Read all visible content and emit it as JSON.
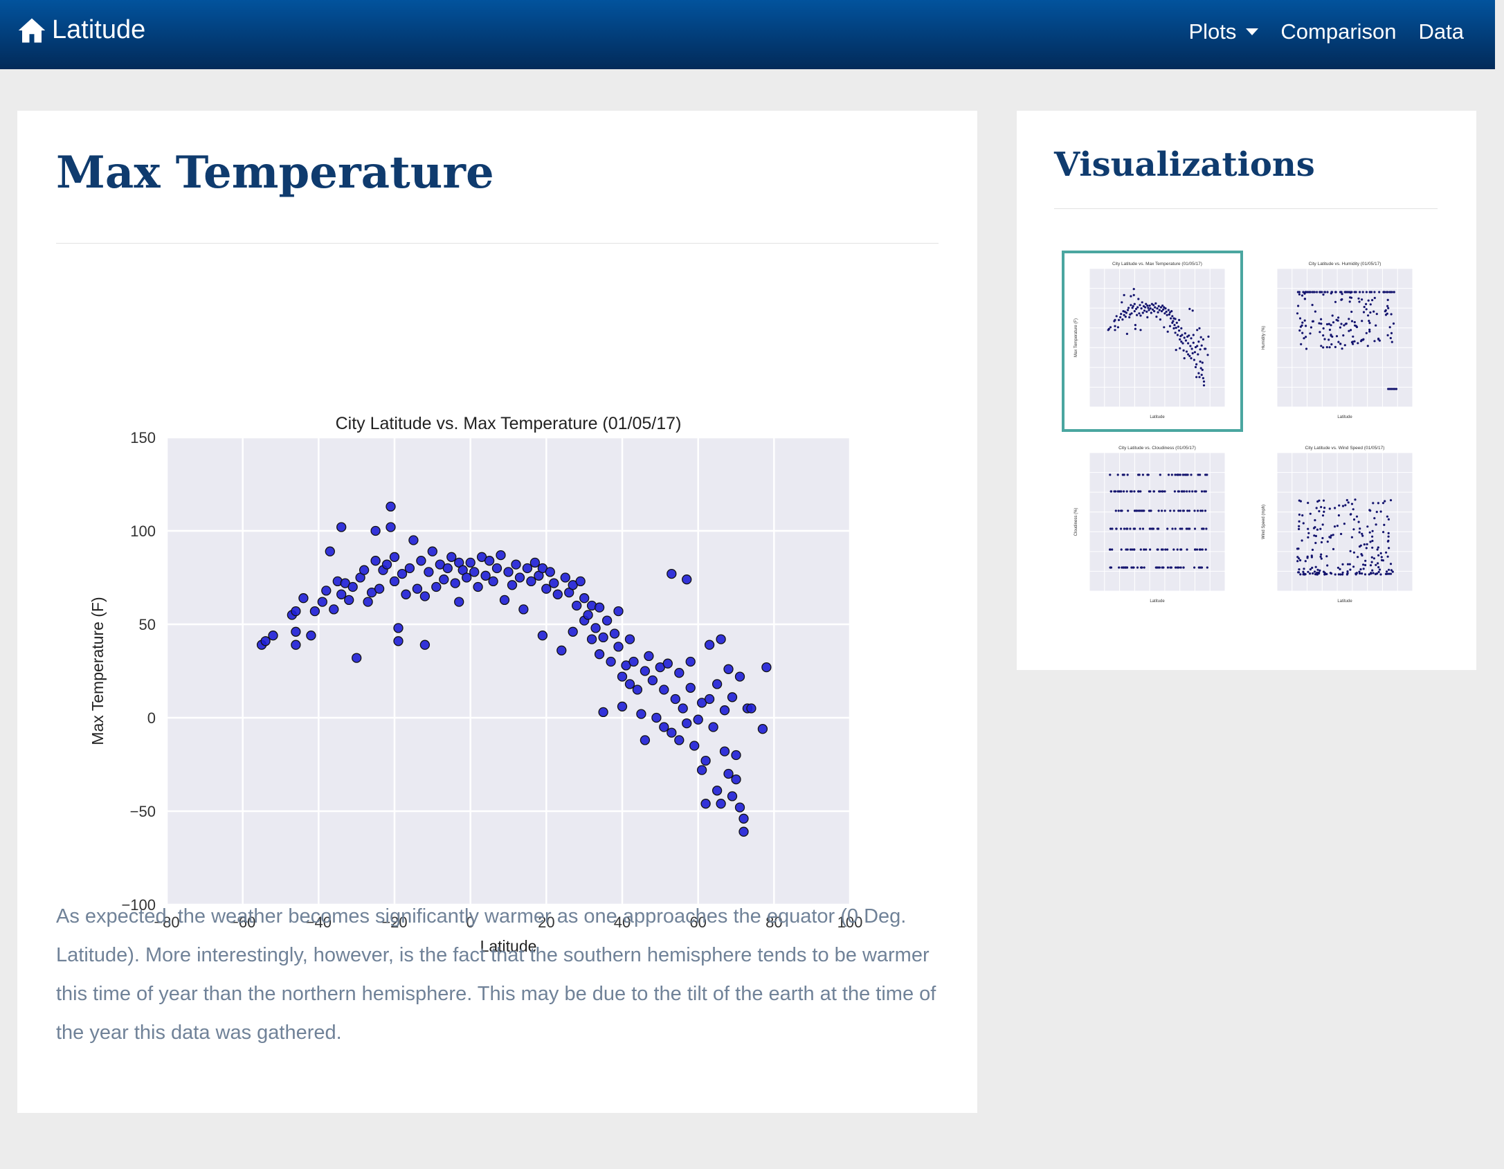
{
  "navbar": {
    "brand": "Latitude",
    "brand_icon": "home-icon",
    "items": [
      {
        "label": "Plots",
        "dropdown": true
      },
      {
        "label": "Comparison"
      },
      {
        "label": "Data"
      }
    ]
  },
  "main": {
    "title": "Max Temperature",
    "description": "As expected, the weather becomes significantly warmer as one approaches the equator (0 Deg. Latitude). More interestingly, however, is the fact that the southern hemisphere tends to be warmer this time of year than the northern hemisphere. This may be due to the tilt of the earth at the time of the year this data was gathered."
  },
  "chart_data": {
    "type": "scatter",
    "title": "City Latitude vs. Max Temperature (01/05/17)",
    "xlabel": "Latitude",
    "ylabel": "Max Temperature (F)",
    "xlim": [
      -80,
      100
    ],
    "ylim": [
      -100,
      150
    ],
    "xticks": [
      "−80",
      "−60",
      "−40",
      "−20",
      "0",
      "20",
      "40",
      "60",
      "80",
      "100"
    ],
    "yticks": [
      "150",
      "100",
      "50",
      "0",
      "−50",
      "−100"
    ],
    "grid": true,
    "marker_color": "#1f1fd6",
    "points": [
      [
        -55,
        39
      ],
      [
        -54,
        41
      ],
      [
        -52,
        44
      ],
      [
        -47,
        55
      ],
      [
        -46,
        57
      ],
      [
        -46,
        46
      ],
      [
        -46,
        39
      ],
      [
        -44,
        64
      ],
      [
        -42,
        44
      ],
      [
        -41,
        57
      ],
      [
        -39,
        62
      ],
      [
        -38,
        68
      ],
      [
        -37,
        89
      ],
      [
        -36,
        58
      ],
      [
        -35,
        73
      ],
      [
        -34,
        66
      ],
      [
        -34,
        102
      ],
      [
        -33,
        72
      ],
      [
        -32,
        63
      ],
      [
        -31,
        70
      ],
      [
        -30,
        32
      ],
      [
        -29,
        75
      ],
      [
        -28,
        79
      ],
      [
        -27,
        62
      ],
      [
        -26,
        67
      ],
      [
        -25,
        84
      ],
      [
        -25,
        100
      ],
      [
        -24,
        69
      ],
      [
        -23,
        79
      ],
      [
        -22,
        82
      ],
      [
        -21,
        113
      ],
      [
        -21,
        102
      ],
      [
        -20,
        86
      ],
      [
        -20,
        73
      ],
      [
        -19,
        48
      ],
      [
        -19,
        41
      ],
      [
        -18,
        77
      ],
      [
        -17,
        66
      ],
      [
        -16,
        80
      ],
      [
        -15,
        95
      ],
      [
        -14,
        69
      ],
      [
        -13,
        84
      ],
      [
        -12,
        39
      ],
      [
        -12,
        65
      ],
      [
        -11,
        78
      ],
      [
        -10,
        89
      ],
      [
        -9,
        70
      ],
      [
        -8,
        82
      ],
      [
        -7,
        74
      ],
      [
        -6,
        80
      ],
      [
        -5,
        86
      ],
      [
        -4,
        72
      ],
      [
        -3,
        83
      ],
      [
        -3,
        62
      ],
      [
        -2,
        79
      ],
      [
        -1,
        75
      ],
      [
        0,
        83
      ],
      [
        1,
        78
      ],
      [
        2,
        70
      ],
      [
        3,
        86
      ],
      [
        4,
        76
      ],
      [
        5,
        84
      ],
      [
        6,
        73
      ],
      [
        7,
        80
      ],
      [
        8,
        87
      ],
      [
        9,
        63
      ],
      [
        10,
        78
      ],
      [
        11,
        71
      ],
      [
        12,
        82
      ],
      [
        13,
        75
      ],
      [
        14,
        58
      ],
      [
        15,
        80
      ],
      [
        16,
        73
      ],
      [
        17,
        83
      ],
      [
        18,
        76
      ],
      [
        19,
        80
      ],
      [
        19,
        44
      ],
      [
        20,
        69
      ],
      [
        21,
        78
      ],
      [
        22,
        72
      ],
      [
        23,
        66
      ],
      [
        24,
        36
      ],
      [
        25,
        75
      ],
      [
        26,
        67
      ],
      [
        27,
        71
      ],
      [
        27,
        46
      ],
      [
        28,
        60
      ],
      [
        29,
        73
      ],
      [
        30,
        64
      ],
      [
        30,
        52
      ],
      [
        31,
        55
      ],
      [
        32,
        42
      ],
      [
        32,
        60
      ],
      [
        33,
        48
      ],
      [
        34,
        34
      ],
      [
        34,
        59
      ],
      [
        35,
        3
      ],
      [
        35,
        43
      ],
      [
        36,
        52
      ],
      [
        37,
        30
      ],
      [
        38,
        45
      ],
      [
        39,
        38
      ],
      [
        39,
        57
      ],
      [
        40,
        22
      ],
      [
        40,
        6
      ],
      [
        41,
        28
      ],
      [
        42,
        18
      ],
      [
        42,
        42
      ],
      [
        43,
        30
      ],
      [
        44,
        15
      ],
      [
        45,
        2
      ],
      [
        46,
        25
      ],
      [
        46,
        -12
      ],
      [
        47,
        33
      ],
      [
        48,
        20
      ],
      [
        49,
        0
      ],
      [
        50,
        27
      ],
      [
        51,
        -5
      ],
      [
        51,
        15
      ],
      [
        52,
        29
      ],
      [
        53,
        -8
      ],
      [
        53,
        77
      ],
      [
        54,
        10
      ],
      [
        55,
        -12
      ],
      [
        55,
        24
      ],
      [
        56,
        5
      ],
      [
        57,
        74
      ],
      [
        57,
        -3
      ],
      [
        58,
        16
      ],
      [
        58,
        30
      ],
      [
        59,
        -15
      ],
      [
        60,
        -1
      ],
      [
        61,
        -28
      ],
      [
        61,
        8
      ],
      [
        62,
        -23
      ],
      [
        62,
        -46
      ],
      [
        63,
        10
      ],
      [
        63,
        39
      ],
      [
        64,
        -5
      ],
      [
        65,
        18
      ],
      [
        65,
        -39
      ],
      [
        66,
        -46
      ],
      [
        66,
        42
      ],
      [
        67,
        -18
      ],
      [
        67,
        4
      ],
      [
        68,
        26
      ],
      [
        68,
        -30
      ],
      [
        69,
        -42
      ],
      [
        69,
        11
      ],
      [
        70,
        -20
      ],
      [
        70,
        -33
      ],
      [
        71,
        -48
      ],
      [
        71,
        22
      ],
      [
        72,
        -54
      ],
      [
        72,
        -61
      ],
      [
        73,
        5
      ],
      [
        74,
        5
      ],
      [
        77,
        -6
      ],
      [
        78,
        27
      ]
    ]
  },
  "sidebar": {
    "title": "Visualizations",
    "thumbnails": [
      {
        "title": "City Latitude vs. Max Temperature (01/05/17)",
        "ylabel": "Max Temperature (F)",
        "xlabel": "Latitude",
        "selected": true
      },
      {
        "title": "City Latitude vs. Humidity (01/05/17)",
        "ylabel": "Humidity (%)",
        "xlabel": "Latitude",
        "selected": false
      },
      {
        "title": "City Latitude vs. Cloudiness (01/05/17)",
        "ylabel": "Cloudiness (%)",
        "xlabel": "Latitude",
        "selected": false
      },
      {
        "title": "City Latitude vs. Wind Speed (01/05/17)",
        "ylabel": "Wind Speed (mph)",
        "xlabel": "Latitude",
        "selected": false
      }
    ]
  }
}
